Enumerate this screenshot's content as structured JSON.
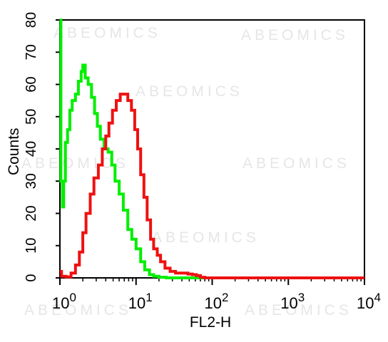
{
  "chart_data": {
    "type": "line",
    "xscale": "log",
    "xlim": [
      1,
      10000
    ],
    "ylim": [
      0,
      80
    ],
    "xlabel": "FL2-H",
    "ylabel": "Counts",
    "y_ticks": [
      "0",
      "10",
      "20",
      "30",
      "40",
      "50",
      "60",
      "70",
      "80"
    ],
    "x_ticks": [
      {
        "base": "10",
        "exp": "0"
      },
      {
        "base": "10",
        "exp": "1"
      },
      {
        "base": "10",
        "exp": "2"
      },
      {
        "base": "10",
        "exp": "3"
      },
      {
        "base": "10",
        "exp": "4"
      }
    ],
    "grid": false,
    "series": [
      {
        "color": "#00ee00",
        "points": [
          [
            1.0,
            80
          ],
          [
            1.03,
            30
          ],
          [
            1.08,
            22
          ],
          [
            1.12,
            30
          ],
          [
            1.18,
            42
          ],
          [
            1.26,
            46
          ],
          [
            1.35,
            52
          ],
          [
            1.45,
            55
          ],
          [
            1.6,
            57
          ],
          [
            1.75,
            61
          ],
          [
            1.9,
            64
          ],
          [
            2.0,
            66
          ],
          [
            2.15,
            62
          ],
          [
            2.35,
            60
          ],
          [
            2.6,
            56
          ],
          [
            2.85,
            51
          ],
          [
            3.1,
            47
          ],
          [
            3.4,
            43
          ],
          [
            3.8,
            40
          ],
          [
            4.3,
            39
          ],
          [
            4.8,
            35
          ],
          [
            5.3,
            30
          ],
          [
            6.0,
            26
          ],
          [
            6.8,
            21
          ],
          [
            7.8,
            15
          ],
          [
            8.8,
            12
          ],
          [
            10,
            9
          ],
          [
            11.5,
            5
          ],
          [
            13,
            2.5
          ],
          [
            15,
            1
          ],
          [
            17,
            0.5
          ],
          [
            20,
            0.2
          ],
          [
            25,
            0
          ],
          [
            30,
            0
          ]
        ]
      },
      {
        "color": "#ee1111",
        "points": [
          [
            1.0,
            2
          ],
          [
            1.05,
            0.5
          ],
          [
            1.2,
            0.3
          ],
          [
            1.4,
            1.5
          ],
          [
            1.6,
            4
          ],
          [
            1.8,
            8
          ],
          [
            2.0,
            14
          ],
          [
            2.2,
            20
          ],
          [
            2.5,
            26
          ],
          [
            2.8,
            31
          ],
          [
            3.2,
            35
          ],
          [
            3.6,
            40
          ],
          [
            4.0,
            44
          ],
          [
            4.4,
            48
          ],
          [
            4.9,
            52
          ],
          [
            5.5,
            55
          ],
          [
            6.2,
            57
          ],
          [
            7.0,
            57
          ],
          [
            7.8,
            55
          ],
          [
            8.7,
            52
          ],
          [
            9.6,
            46
          ],
          [
            10.5,
            40
          ],
          [
            11.5,
            32
          ],
          [
            12.7,
            25
          ],
          [
            14,
            18
          ],
          [
            15.5,
            12
          ],
          [
            17,
            9
          ],
          [
            19,
            7
          ],
          [
            21,
            5
          ],
          [
            24,
            3
          ],
          [
            28,
            2
          ],
          [
            33,
            1.5
          ],
          [
            40,
            1.5
          ],
          [
            48,
            1.2
          ],
          [
            55,
            1
          ],
          [
            62,
            0.7
          ],
          [
            70,
            0.2
          ],
          [
            80,
            0
          ]
        ]
      }
    ],
    "watermark": "ABEOMICS"
  }
}
